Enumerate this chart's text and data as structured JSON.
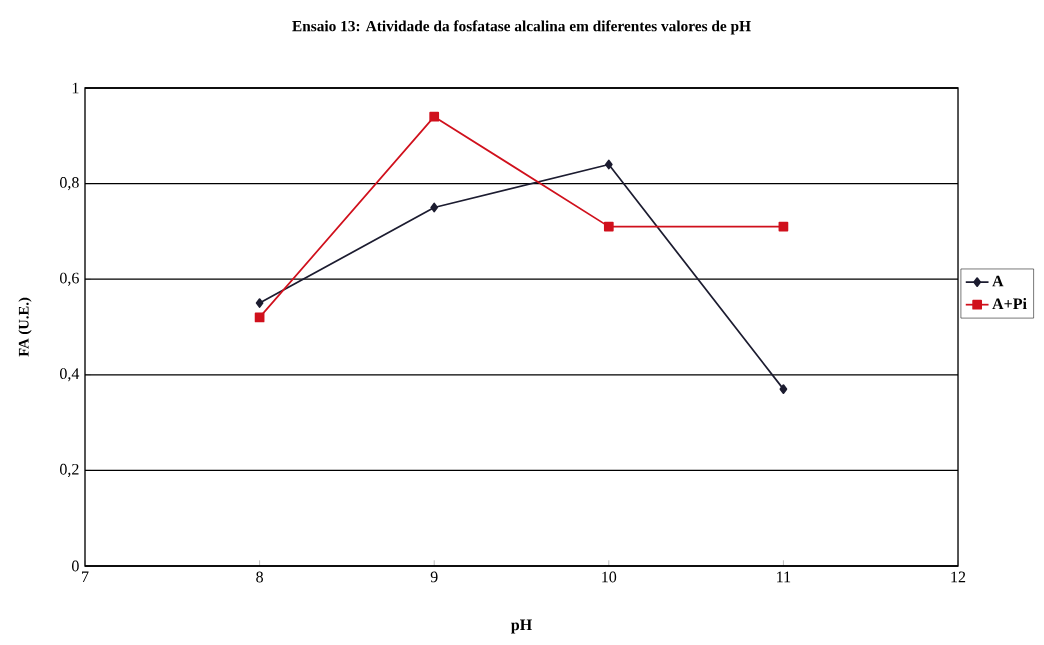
{
  "chart_data": {
    "type": "line",
    "title": "Ensaio 13: Atividade da fosfatase alcalina em diferentes valores de pH",
    "xlabel": "pH",
    "ylabel": "FA (U.E.)",
    "x": [
      8,
      9,
      10,
      11
    ],
    "series": [
      {
        "name": "A",
        "color": "#1c1c30",
        "marker": "diamond",
        "values": [
          0.55,
          0.75,
          0.84,
          0.37
        ]
      },
      {
        "name": "A+Pi",
        "color": "#d0101c",
        "marker": "square",
        "values": [
          0.52,
          0.94,
          0.71,
          0.71
        ]
      }
    ],
    "xlim": [
      7,
      12
    ],
    "xticks": [
      7,
      8,
      9,
      10,
      11,
      12
    ],
    "ylim": [
      0,
      1
    ],
    "yticks": [
      0,
      {
        "value": 0.2,
        "label": "0,2"
      },
      {
        "value": 0.4,
        "label": "0,4"
      },
      {
        "value": 0.6,
        "label": "0,6"
      },
      {
        "value": 0.8,
        "label": "0,8"
      },
      1
    ],
    "grid": "y",
    "legend": "right",
    "line_style": "solid"
  }
}
